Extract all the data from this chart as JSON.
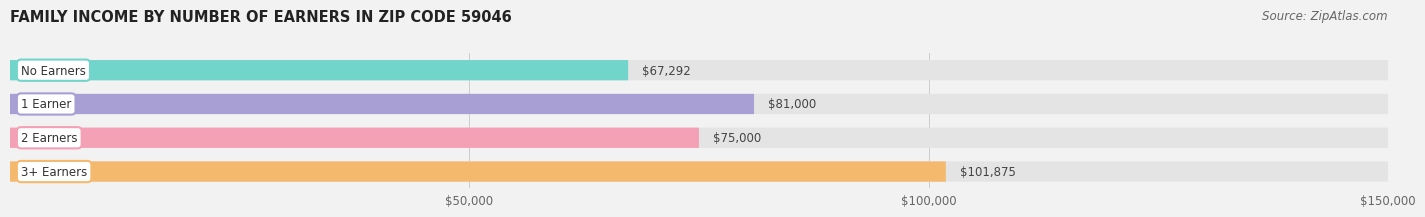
{
  "title": "FAMILY INCOME BY NUMBER OF EARNERS IN ZIP CODE 59046",
  "source": "Source: ZipAtlas.com",
  "categories": [
    "No Earners",
    "1 Earner",
    "2 Earners",
    "3+ Earners"
  ],
  "values": [
    67292,
    81000,
    75000,
    101875
  ],
  "bar_colors": [
    "#72d5cb",
    "#a89fd4",
    "#f4a0b5",
    "#f5b96e"
  ],
  "value_labels": [
    "$67,292",
    "$81,000",
    "$75,000",
    "$101,875"
  ],
  "xlim": [
    0,
    150000
  ],
  "xticks": [
    50000,
    100000,
    150000
  ],
  "xtick_labels": [
    "$50,000",
    "$100,000",
    "$150,000"
  ],
  "bar_height": 0.6,
  "background_color": "#f2f2f2",
  "bar_bg_color": "#e4e4e4",
  "title_fontsize": 10.5,
  "source_fontsize": 8.5,
  "label_fontsize": 8.5,
  "value_fontsize": 8.5,
  "tick_fontsize": 8.5
}
